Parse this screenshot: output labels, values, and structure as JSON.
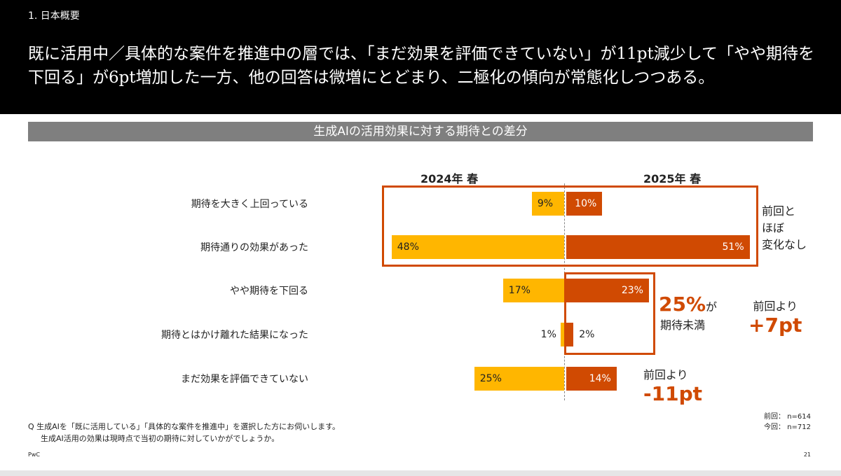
{
  "header": {
    "section": "1. 日本概要",
    "headline": "既に活用中／具体的な案件を推進中の層では、「まだ効果を評価できていない」が11pt減少して「やや期待を下回る」が6pt増加した一方、他の回答は微増にとどまり、二極化の傾向が常態化しつつある。"
  },
  "chart_data": {
    "type": "bar",
    "title": "生成AIの活用効果に対する期待との差分",
    "categories": [
      "期待を大きく上回っている",
      "期待通りの効果があった",
      "やや期待を下回る",
      "期待とはかけ離れた結果になった",
      "まだ効果を評価できていない"
    ],
    "series": [
      {
        "name": "2024年 春",
        "values": [
          9,
          48,
          17,
          1,
          25
        ],
        "labels": [
          "9%",
          "48%",
          "17%",
          "1%",
          "25%"
        ],
        "color": "#FFB600",
        "direction": "left"
      },
      {
        "name": "2025年 春",
        "values": [
          10,
          51,
          23,
          2,
          14
        ],
        "labels": [
          "10%",
          "51%",
          "23%",
          "2%",
          "14%"
        ],
        "color": "#D04A02",
        "direction": "right"
      }
    ],
    "unit": "%"
  },
  "annotations": {
    "no_change": [
      "前回と",
      "ほぼ",
      "変化なし"
    ],
    "below_pct": "25%",
    "below_suffix": "が",
    "below_text": "期待未満",
    "plus_label": "前回より",
    "plus_value": "+7pt",
    "minus_label": "前回より",
    "minus_value": "-11pt"
  },
  "samples": {
    "prev": "前回： n=614",
    "curr": "今回： n=712"
  },
  "question": {
    "line1": "Q  生成AIを「既に活用している」「具体的な案件を推進中」を選択した方にお伺いします。",
    "line2": "生成AI活用の効果は現時点で当初の期待に対していかがでしょうか。"
  },
  "footer": {
    "brand": "PwC",
    "page": "21"
  },
  "colors": {
    "accent": "#D04A02",
    "yellow": "#FFB600"
  }
}
